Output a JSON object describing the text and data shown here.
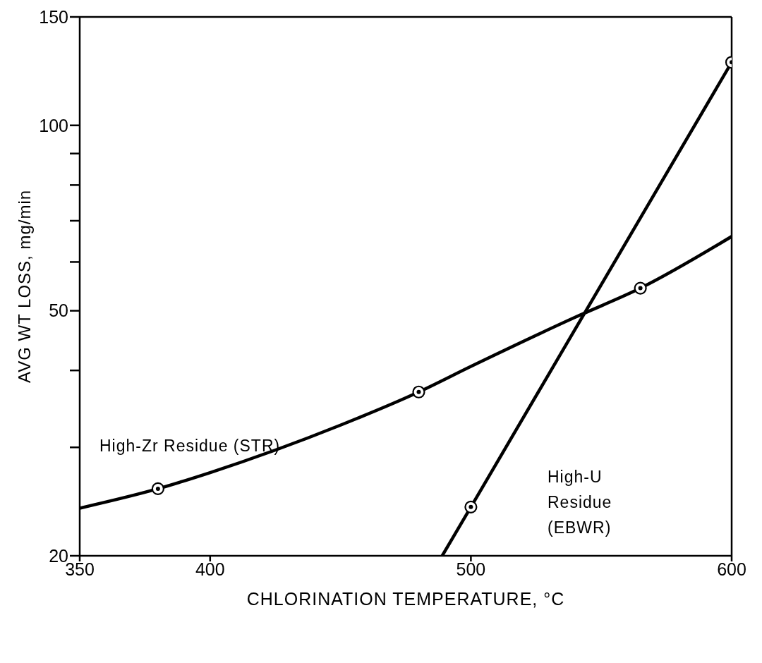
{
  "chart_data": {
    "type": "line",
    "xlabel": "CHLORINATION TEMPERATURE, °C",
    "ylabel": "AVG WT LOSS, mg/min",
    "xlim": [
      350,
      600
    ],
    "xticks": [
      350,
      400,
      500,
      600
    ],
    "ylim": [
      20,
      150
    ],
    "yticks": [
      20,
      {
        "value": 30,
        "label": null
      },
      {
        "value": 40,
        "label": null
      },
      50,
      {
        "value": 60,
        "label": null
      },
      {
        "value": 70,
        "label": null
      },
      {
        "value": 80,
        "label": null
      },
      {
        "value": 90,
        "label": null
      },
      100,
      150
    ],
    "log": "y",
    "grid": false,
    "legend": false,
    "line_style": "solid",
    "series": [
      {
        "name": "High-Zr Residue (STR)",
        "color": "#000000",
        "x": [
          350,
          380,
          400,
          450,
          480,
          500,
          540,
          565,
          600
        ],
        "values": [
          23.9,
          25.7,
          27.3,
          32.6,
          36.9,
          40.6,
          48.8,
          54.4,
          66
        ]
      },
      {
        "type": "scatter",
        "color": "#000000",
        "marker": "circle",
        "x": [
          380,
          480,
          565
        ],
        "values": [
          25.7,
          36.9,
          54.4
        ]
      },
      {
        "name": "High-U Residue (EBWR)",
        "color": "#000000",
        "x": [
          489,
          500,
          600
        ],
        "values": [
          20,
          24.0,
          126.6
        ]
      },
      {
        "type": "scatter",
        "color": "#000000",
        "marker": "circle",
        "x": [
          500,
          600
        ],
        "values": [
          24.0,
          126.6
        ]
      }
    ]
  }
}
